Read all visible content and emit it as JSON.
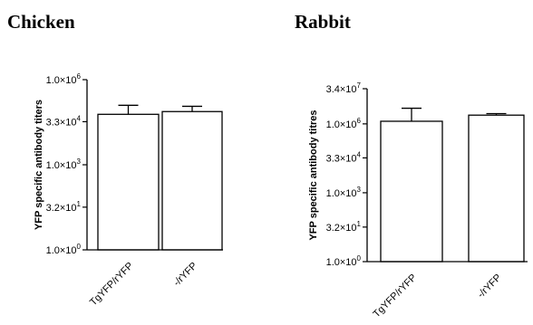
{
  "chart_data": [
    {
      "type": "bar",
      "title": "Chicken",
      "ylabel": "YFP specific antibody titers",
      "y_scale": "log",
      "ylim": [
        1,
        1000000
      ],
      "ticks": [
        {
          "value": 1,
          "mantissa": "1.0",
          "exponent": "0"
        },
        {
          "value": 32,
          "mantissa": "3.2",
          "exponent": "1"
        },
        {
          "value": 1000,
          "mantissa": "1.0",
          "exponent": "3"
        },
        {
          "value": 33000,
          "mantissa": "3.3",
          "exponent": "4"
        },
        {
          "value": 1000000,
          "mantissa": "1.0",
          "exponent": "6"
        }
      ],
      "categories": [
        "TgYFP/rYFP",
        "-/rYFP"
      ],
      "values": [
        60000,
        75000
      ],
      "errors_upper": [
        125000,
        115000
      ]
    },
    {
      "type": "bar",
      "title": "Rabbit",
      "ylabel": "YFP specific antibody titres",
      "y_scale": "log",
      "ylim": [
        1,
        34000000
      ],
      "ticks": [
        {
          "value": 1,
          "mantissa": "1.0",
          "exponent": "0"
        },
        {
          "value": 32,
          "mantissa": "3.2",
          "exponent": "1"
        },
        {
          "value": 1000,
          "mantissa": "1.0",
          "exponent": "3"
        },
        {
          "value": 33000,
          "mantissa": "3.3",
          "exponent": "4"
        },
        {
          "value": 1000000,
          "mantissa": "1.0",
          "exponent": "6"
        },
        {
          "value": 34000000,
          "mantissa": "3.4",
          "exponent": "7"
        }
      ],
      "categories": [
        "TgYFP/rYFP",
        "-/rYFP"
      ],
      "values": [
        1300000,
        2400000
      ],
      "errors_upper": [
        4800000,
        2800000
      ]
    }
  ]
}
